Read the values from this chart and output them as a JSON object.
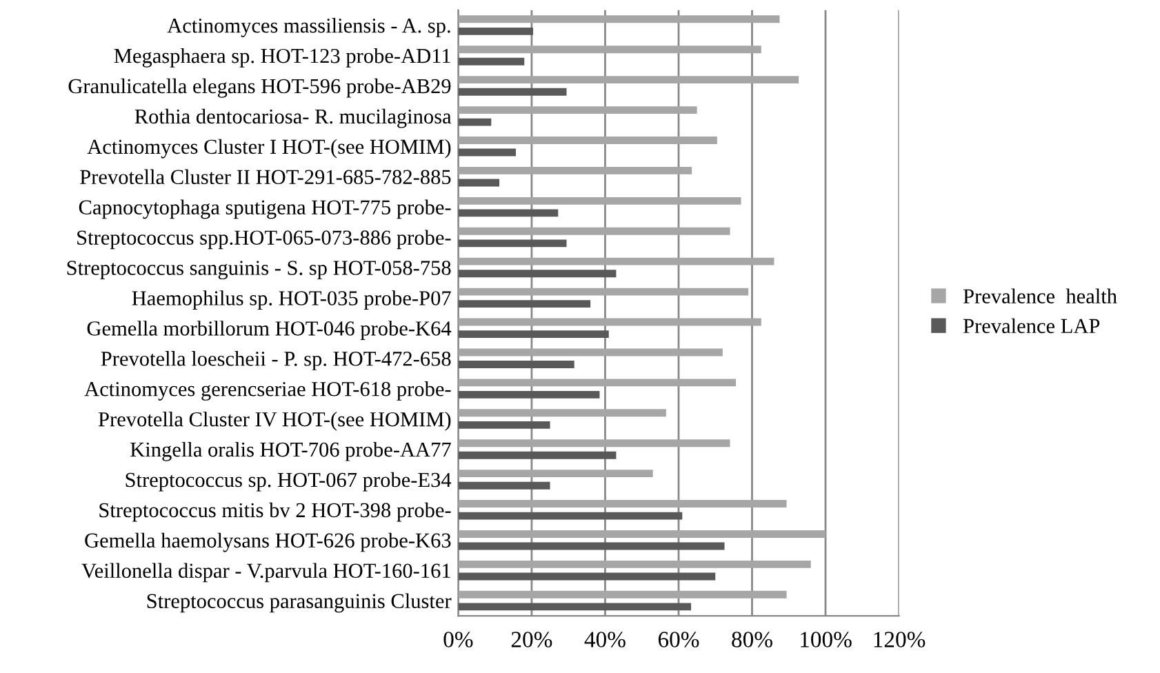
{
  "chart_data": {
    "type": "bar",
    "orientation": "horizontal",
    "categories": [
      "Actinomyces massiliensis - A. sp.",
      "Megasphaera sp. HOT-123 probe-AD11",
      "Granulicatella elegans HOT-596 probe-AB29",
      "Rothia dentocariosa- R. mucilaginosa",
      "Actinomyces Cluster I HOT-(see HOMIM)",
      "Prevotella Cluster II HOT-291-685-782-885",
      "Capnocytophaga sputigena HOT-775 probe-",
      "Streptococcus spp.HOT-065-073-886 probe-",
      "Streptococcus sanguinis - S. sp HOT-058-758",
      "Haemophilus sp. HOT-035 probe-P07",
      "Gemella morbillorum HOT-046 probe-K64",
      "Prevotella loescheii - P. sp. HOT-472-658",
      "Actinomyces gerencseriae HOT-618 probe-",
      "Prevotella Cluster IV HOT-(see HOMIM)",
      "Kingella oralis HOT-706 probe-AA77",
      "Streptococcus sp. HOT-067 probe-E34",
      "Streptococcus mitis bv 2 HOT-398 probe-",
      "Gemella haemolysans HOT-626 probe-K63",
      "Veillonella dispar - V.parvula HOT-160-161",
      "Streptococcus parasanguinis Cluster"
    ],
    "series": [
      {
        "name": "Prevalence  health",
        "color": "#a6a6a6",
        "values": [
          87.5,
          82.5,
          92.7,
          65,
          70.5,
          63.6,
          77,
          74,
          86,
          79,
          82.5,
          72,
          75.6,
          56.6,
          74,
          53,
          89.4,
          100,
          96,
          89.4
        ]
      },
      {
        "name": "Prevalence LAP",
        "color": "#595959",
        "values": [
          20.4,
          18,
          29.5,
          9,
          15.7,
          11.2,
          27.2,
          29.5,
          43,
          36,
          41,
          31.6,
          38.5,
          25,
          43,
          25,
          61,
          72.5,
          70,
          63.4
        ]
      }
    ],
    "xlim": [
      0,
      120
    ],
    "xticks": [
      {
        "value": 0,
        "label": "0%"
      },
      {
        "value": 20,
        "label": "20%"
      },
      {
        "value": 40,
        "label": "40%"
      },
      {
        "value": 60,
        "label": "60%"
      },
      {
        "value": 80,
        "label": "80%"
      },
      {
        "value": 100,
        "label": "100%"
      },
      {
        "value": 120,
        "label": "120%"
      }
    ],
    "grid": "x",
    "legend": "right"
  }
}
